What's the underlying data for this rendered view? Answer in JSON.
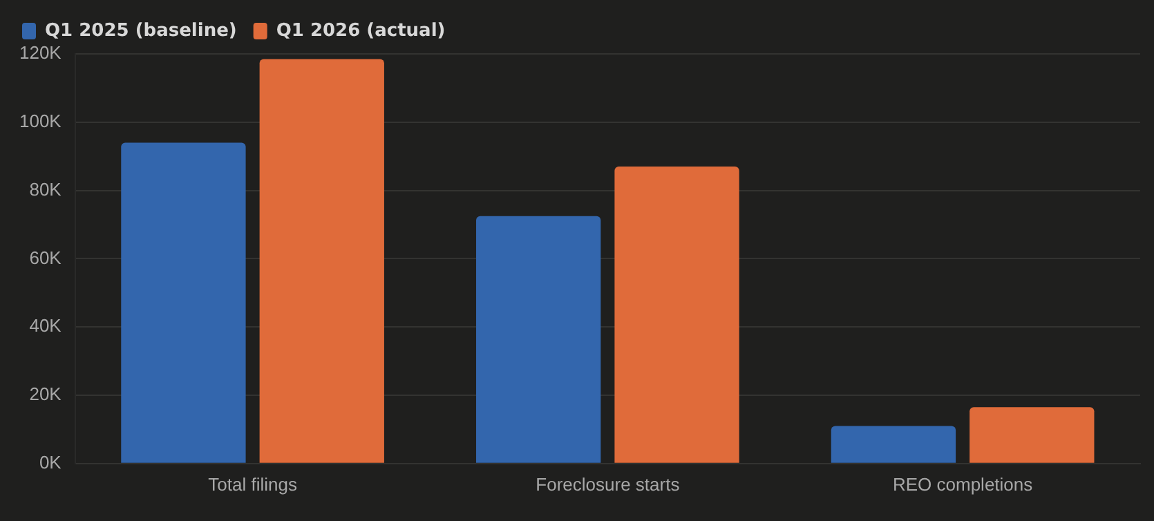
{
  "chart_data": {
    "type": "bar",
    "categories": [
      "Total filings",
      "Foreclosure starts",
      "REO completions"
    ],
    "series": [
      {
        "name": "Q1 2025 (baseline)",
        "color": "#3366ad",
        "values": [
          94000,
          72500,
          11000
        ]
      },
      {
        "name": "Q1 2026 (actual)",
        "color": "#e06b3a",
        "values": [
          118500,
          87000,
          16500
        ]
      }
    ],
    "ylim": [
      0,
      120000
    ],
    "yticks": [
      {
        "value": 0,
        "label": "0K"
      },
      {
        "value": 20000,
        "label": "20K"
      },
      {
        "value": 40000,
        "label": "40K"
      },
      {
        "value": 60000,
        "label": "60K"
      },
      {
        "value": 80000,
        "label": "80K"
      },
      {
        "value": 100000,
        "label": "100K"
      },
      {
        "value": 120000,
        "label": "120K"
      }
    ],
    "grid": "y",
    "legend": "top left"
  }
}
